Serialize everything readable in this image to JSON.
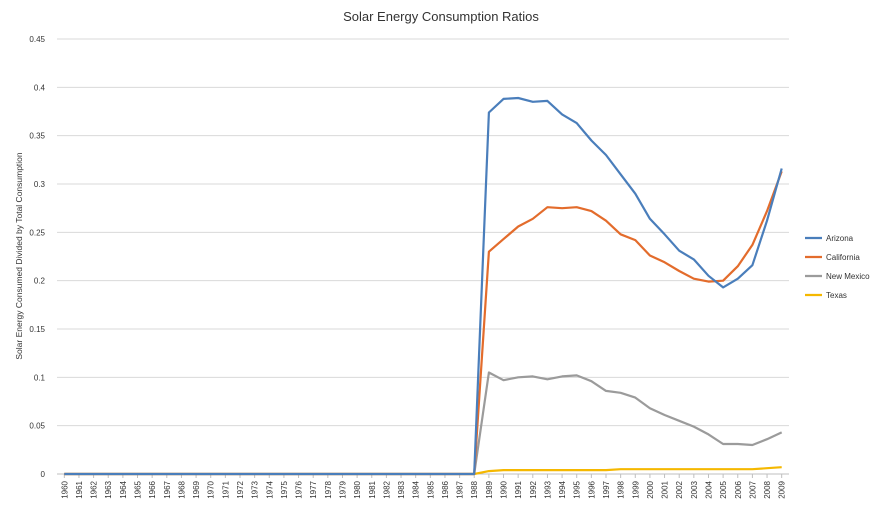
{
  "chart_data": {
    "type": "line",
    "title": "Solar Energy Consumption Ratios",
    "xlabel": "",
    "ylabel": "Solar Energy Consumed Divided by Total Consumption",
    "ylim": [
      0,
      0.45
    ],
    "yticks": [
      "0",
      "0.05",
      "0.1",
      "0.15",
      "0.2",
      "0.25",
      "0.3",
      "0.35",
      "0.4",
      "0.45"
    ],
    "grid": "horizontal",
    "legend_position": "right",
    "x": [
      "1960",
      "1961",
      "1962",
      "1963",
      "1964",
      "1965",
      "1966",
      "1967",
      "1968",
      "1969",
      "1970",
      "1971",
      "1972",
      "1973",
      "1974",
      "1975",
      "1976",
      "1977",
      "1978",
      "1979",
      "1980",
      "1981",
      "1982",
      "1983",
      "1984",
      "1985",
      "1986",
      "1987",
      "1988",
      "1989",
      "1990",
      "1991",
      "1992",
      "1993",
      "1994",
      "1995",
      "1996",
      "1997",
      "1998",
      "1999",
      "2000",
      "2001",
      "2002",
      "2003",
      "2004",
      "2005",
      "2006",
      "2007",
      "2008",
      "2009"
    ],
    "series": [
      {
        "name": "Arizona",
        "color": "#4a7ebb",
        "values": [
          0,
          0,
          0,
          0,
          0,
          0,
          0,
          0,
          0,
          0,
          0,
          0,
          0,
          0,
          0,
          0,
          0,
          0,
          0,
          0,
          0,
          0,
          0,
          0,
          0,
          0,
          0,
          0,
          0,
          0.374,
          0.388,
          0.389,
          0.385,
          0.386,
          0.372,
          0.363,
          0.345,
          0.33,
          0.31,
          0.29,
          0.264,
          0.248,
          0.231,
          0.222,
          0.205,
          0.193,
          0.202,
          0.216,
          0.262,
          0.316
        ]
      },
      {
        "name": "California",
        "color": "#e36c2c",
        "values": [
          0,
          0,
          0,
          0,
          0,
          0,
          0,
          0,
          0,
          0,
          0,
          0,
          0,
          0,
          0,
          0,
          0,
          0,
          0,
          0,
          0,
          0,
          0,
          0,
          0,
          0,
          0,
          0,
          0,
          0.23,
          0.243,
          0.256,
          0.264,
          0.276,
          0.275,
          0.276,
          0.272,
          0.262,
          0.248,
          0.242,
          0.226,
          0.219,
          0.21,
          0.202,
          0.199,
          0.2,
          0.215,
          0.237,
          0.272,
          0.313
        ]
      },
      {
        "name": "New Mexico",
        "color": "#9b9b9b",
        "values": [
          0,
          0,
          0,
          0,
          0,
          0,
          0,
          0,
          0,
          0,
          0,
          0,
          0,
          0,
          0,
          0,
          0,
          0,
          0,
          0,
          0,
          0,
          0,
          0,
          0,
          0,
          0,
          0,
          0,
          0.105,
          0.097,
          0.1,
          0.101,
          0.098,
          0.101,
          0.102,
          0.096,
          0.086,
          0.084,
          0.079,
          0.068,
          0.061,
          0.055,
          0.049,
          0.041,
          0.031,
          0.031,
          0.03,
          0.036,
          0.043
        ]
      },
      {
        "name": "Texas",
        "color": "#f5b800",
        "values": [
          0,
          0,
          0,
          0,
          0,
          0,
          0,
          0,
          0,
          0,
          0,
          0,
          0,
          0,
          0,
          0,
          0,
          0,
          0,
          0,
          0,
          0,
          0,
          0,
          0,
          0,
          0,
          0,
          0,
          0.003,
          0.004,
          0.004,
          0.004,
          0.004,
          0.004,
          0.004,
          0.004,
          0.004,
          0.005,
          0.005,
          0.005,
          0.005,
          0.005,
          0.005,
          0.005,
          0.005,
          0.005,
          0.005,
          0.006,
          0.007
        ]
      }
    ]
  }
}
